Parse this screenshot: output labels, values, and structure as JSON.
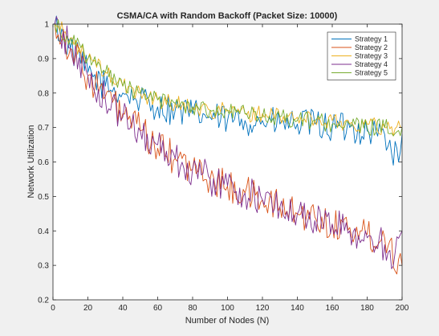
{
  "chart_data": {
    "type": "line",
    "title": "CSMA/CA with Random Backoff (Packet Size: 10000)",
    "xlabel": "Number of Nodes (N)",
    "ylabel": "Network Utilization",
    "xlim": [
      0,
      200
    ],
    "ylim": [
      0.2,
      1.0
    ],
    "xticks": [
      0,
      20,
      40,
      60,
      80,
      100,
      120,
      140,
      160,
      180,
      200
    ],
    "xtick_labels": [
      "0",
      "20",
      "40",
      "60",
      "80",
      "100",
      "120",
      "140",
      "160",
      "180",
      "200"
    ],
    "yticks": [
      0.2,
      0.3,
      0.4,
      0.5,
      0.6,
      0.7,
      0.8,
      0.9,
      1.0
    ],
    "ytick_labels": [
      "0.2",
      "0.3",
      "0.4",
      "0.5",
      "0.6",
      "0.7",
      "0.8",
      "0.9",
      "1"
    ],
    "grid": false,
    "legend_position": "top-right",
    "series": [
      {
        "name": "Strategy 1",
        "color": "#0072bd",
        "x": [
          1,
          10,
          20,
          30,
          40,
          50,
          60,
          70,
          80,
          90,
          100,
          110,
          120,
          130,
          140,
          150,
          160,
          170,
          180,
          190,
          198,
          200
        ],
        "y": [
          1.0,
          0.93,
          0.86,
          0.82,
          0.8,
          0.78,
          0.76,
          0.75,
          0.74,
          0.73,
          0.72,
          0.72,
          0.72,
          0.71,
          0.71,
          0.71,
          0.7,
          0.7,
          0.69,
          0.68,
          0.6,
          0.68
        ]
      },
      {
        "name": "Strategy 2",
        "color": "#d95319",
        "x": [
          1,
          10,
          20,
          30,
          40,
          50,
          60,
          70,
          80,
          90,
          100,
          110,
          120,
          130,
          140,
          150,
          160,
          170,
          180,
          190,
          200
        ],
        "y": [
          1.0,
          0.93,
          0.85,
          0.79,
          0.74,
          0.69,
          0.64,
          0.61,
          0.58,
          0.55,
          0.53,
          0.51,
          0.49,
          0.47,
          0.45,
          0.44,
          0.42,
          0.41,
          0.39,
          0.38,
          0.3
        ]
      },
      {
        "name": "Strategy 3",
        "color": "#edb120",
        "x": [
          1,
          10,
          20,
          30,
          40,
          50,
          60,
          70,
          80,
          90,
          100,
          110,
          120,
          130,
          140,
          150,
          160,
          170,
          180,
          190,
          200
        ],
        "y": [
          1.0,
          0.96,
          0.9,
          0.86,
          0.82,
          0.8,
          0.78,
          0.77,
          0.76,
          0.75,
          0.75,
          0.74,
          0.74,
          0.73,
          0.73,
          0.72,
          0.72,
          0.71,
          0.71,
          0.7,
          0.7
        ]
      },
      {
        "name": "Strategy 4",
        "color": "#7e2f8e",
        "x": [
          1,
          10,
          20,
          30,
          40,
          50,
          60,
          70,
          80,
          90,
          100,
          110,
          120,
          130,
          140,
          150,
          160,
          170,
          180,
          190,
          194,
          200
        ],
        "y": [
          1.0,
          0.93,
          0.85,
          0.78,
          0.73,
          0.69,
          0.65,
          0.61,
          0.58,
          0.55,
          0.53,
          0.51,
          0.49,
          0.47,
          0.45,
          0.43,
          0.42,
          0.4,
          0.38,
          0.36,
          0.29,
          0.4
        ]
      },
      {
        "name": "Strategy 5",
        "color": "#77ac30",
        "x": [
          1,
          10,
          20,
          30,
          40,
          50,
          60,
          70,
          80,
          90,
          100,
          110,
          120,
          130,
          140,
          150,
          160,
          170,
          180,
          190,
          200
        ],
        "y": [
          1.0,
          0.96,
          0.9,
          0.86,
          0.82,
          0.8,
          0.78,
          0.77,
          0.76,
          0.75,
          0.75,
          0.74,
          0.73,
          0.73,
          0.72,
          0.72,
          0.71,
          0.71,
          0.7,
          0.7,
          0.7
        ]
      }
    ]
  }
}
